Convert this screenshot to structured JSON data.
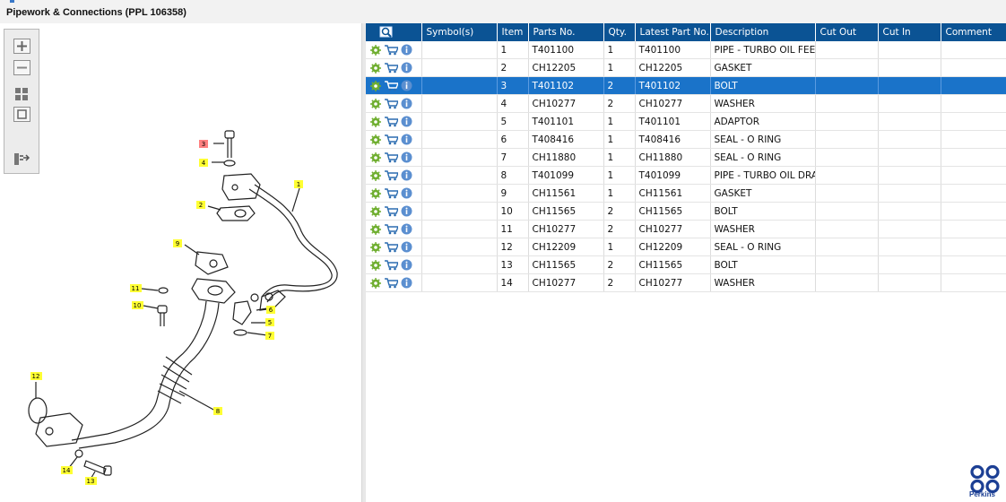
{
  "window": {
    "title": "Pipework & Connections (PPL 106358)"
  },
  "toolbar": {
    "buttons": [
      {
        "name": "zoom-in-button",
        "icon": "zoom-in-icon"
      },
      {
        "name": "zoom-out-button",
        "icon": "zoom-out-icon"
      },
      {
        "name": "fit-view-button",
        "icon": "fit-view-icon"
      },
      {
        "name": "reset-view-button",
        "icon": "reset-view-icon"
      },
      {
        "name": "toggle-panel-button",
        "icon": "panel-toggle-icon"
      }
    ]
  },
  "diagram": {
    "callouts": [
      "1",
      "2",
      "3",
      "4",
      "5",
      "6",
      "7",
      "8",
      "9",
      "10",
      "11",
      "12",
      "13",
      "14"
    ],
    "highlighted_callout": "3",
    "callout_color": "#ffff33",
    "highlight_color": "#ff8080"
  },
  "grid": {
    "columns": [
      "",
      "Symbol(s)",
      "Item",
      "Parts No.",
      "Qty.",
      "Latest Part No.",
      "Description",
      "Cut Out",
      "Cut In",
      "Comment"
    ],
    "selected_row": 2,
    "header_color": "#0b5394",
    "selection_color": "#1a73c9",
    "rows": [
      {
        "item": "1",
        "part_no": "T401100",
        "qty": "1",
        "latest": "T401100",
        "description": "PIPE - TURBO OIL FEED"
      },
      {
        "item": "2",
        "part_no": "CH12205",
        "qty": "1",
        "latest": "CH12205",
        "description": "GASKET"
      },
      {
        "item": "3",
        "part_no": "T401102",
        "qty": "2",
        "latest": "T401102",
        "description": "BOLT"
      },
      {
        "item": "4",
        "part_no": "CH10277",
        "qty": "2",
        "latest": "CH10277",
        "description": "WASHER"
      },
      {
        "item": "5",
        "part_no": "T401101",
        "qty": "1",
        "latest": "T401101",
        "description": "ADAPTOR"
      },
      {
        "item": "6",
        "part_no": "T408416",
        "qty": "1",
        "latest": "T408416",
        "description": "SEAL - O RING"
      },
      {
        "item": "7",
        "part_no": "CH11880",
        "qty": "1",
        "latest": "CH11880",
        "description": "SEAL - O RING"
      },
      {
        "item": "8",
        "part_no": "T401099",
        "qty": "1",
        "latest": "T401099",
        "description": "PIPE - TURBO OIL DRAIN"
      },
      {
        "item": "9",
        "part_no": "CH11561",
        "qty": "1",
        "latest": "CH11561",
        "description": "GASKET"
      },
      {
        "item": "10",
        "part_no": "CH11565",
        "qty": "2",
        "latest": "CH11565",
        "description": "BOLT"
      },
      {
        "item": "11",
        "part_no": "CH10277",
        "qty": "2",
        "latest": "CH10277",
        "description": "WASHER"
      },
      {
        "item": "12",
        "part_no": "CH12209",
        "qty": "1",
        "latest": "CH12209",
        "description": "SEAL - O RING"
      },
      {
        "item": "13",
        "part_no": "CH11565",
        "qty": "2",
        "latest": "CH11565",
        "description": "BOLT"
      },
      {
        "item": "14",
        "part_no": "CH10277",
        "qty": "2",
        "latest": "CH10277",
        "description": "WASHER"
      }
    ],
    "row_icons": [
      "gear-icon",
      "cart-icon",
      "info-icon"
    ]
  },
  "branding": {
    "logo_text": "Perkins",
    "logo_color": "#1c3f94"
  }
}
